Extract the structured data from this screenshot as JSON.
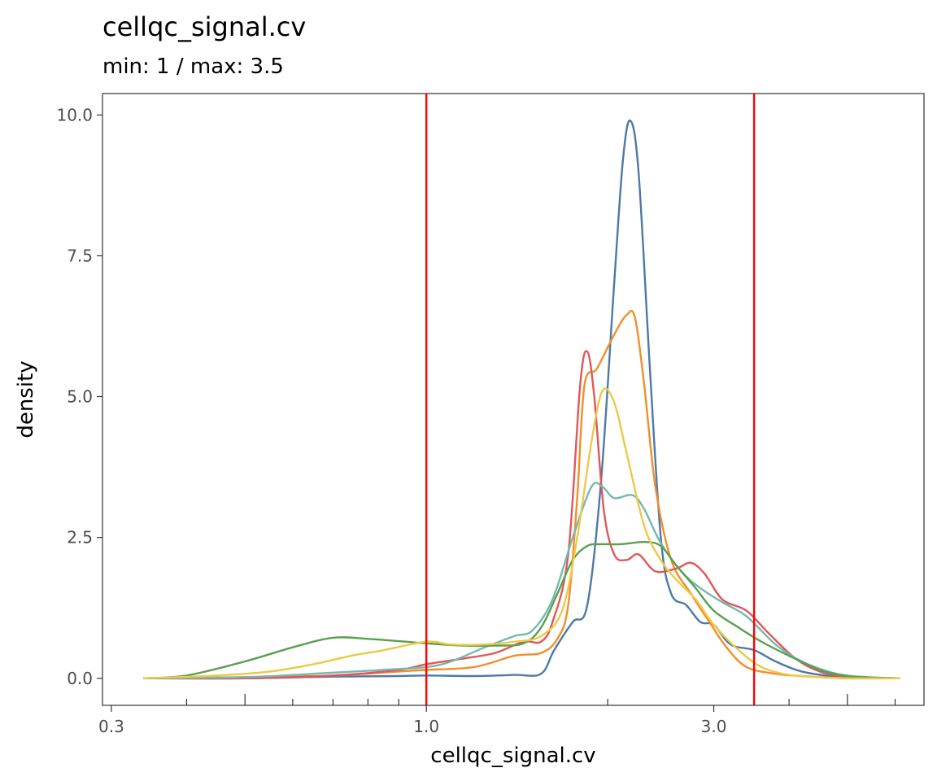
{
  "chart_data": {
    "type": "line",
    "title": "cellqc_signal.cv",
    "subtitle": "min: 1 / max: 3.5",
    "xlabel": "cellqc_signal.cv",
    "ylabel": "density",
    "x_scale": "log10",
    "xlim": [
      0.29,
      6.7
    ],
    "ylim": [
      -0.48,
      10.38
    ],
    "x_ticks": [
      0.3,
      1.0,
      3.0
    ],
    "x_tick_labels": [
      "0.3",
      "1.0",
      "3.0"
    ],
    "x_minor_ticks": [
      0.4,
      0.5,
      0.6,
      0.7,
      0.8,
      0.9,
      2.0,
      4.0,
      5.0,
      6.0
    ],
    "y_ticks": [
      0,
      2.5,
      5,
      7.5,
      10
    ],
    "y_tick_labels": [
      "0.0",
      "2.5",
      "5.0",
      "7.5",
      "10.0"
    ],
    "grid": false,
    "vlines": [
      {
        "x": 1.0,
        "color": "#ff0000"
      },
      {
        "x": 3.5,
        "color": "#ff0000"
      }
    ],
    "series": [
      {
        "color": "#4e79a7",
        "points": [
          [
            0.34,
            0.0
          ],
          [
            0.5,
            0.0
          ],
          [
            0.7,
            0.03
          ],
          [
            0.9,
            0.04
          ],
          [
            1.0,
            0.05
          ],
          [
            1.2,
            0.04
          ],
          [
            1.4,
            0.06
          ],
          [
            1.55,
            0.08
          ],
          [
            1.63,
            0.5
          ],
          [
            1.75,
            1.0
          ],
          [
            1.85,
            1.3
          ],
          [
            1.95,
            3.5
          ],
          [
            2.05,
            7.0
          ],
          [
            2.12,
            9.2
          ],
          [
            2.18,
            9.9
          ],
          [
            2.25,
            9.0
          ],
          [
            2.35,
            5.5
          ],
          [
            2.45,
            2.5
          ],
          [
            2.55,
            1.5
          ],
          [
            2.7,
            1.3
          ],
          [
            2.85,
            1.0
          ],
          [
            3.0,
            0.95
          ],
          [
            3.2,
            0.6
          ],
          [
            3.5,
            0.5
          ],
          [
            3.8,
            0.3
          ],
          [
            4.2,
            0.12
          ],
          [
            4.8,
            0.03
          ],
          [
            5.5,
            0.01
          ],
          [
            6.1,
            0.0
          ]
        ]
      },
      {
        "color": "#f28e2b",
        "points": [
          [
            0.34,
            0.0
          ],
          [
            0.5,
            0.02
          ],
          [
            0.7,
            0.05
          ],
          [
            0.9,
            0.12
          ],
          [
            1.0,
            0.15
          ],
          [
            1.2,
            0.2
          ],
          [
            1.4,
            0.4
          ],
          [
            1.55,
            0.45
          ],
          [
            1.65,
            0.7
          ],
          [
            1.72,
            1.3
          ],
          [
            1.78,
            3.2
          ],
          [
            1.83,
            5.2
          ],
          [
            1.92,
            5.5
          ],
          [
            2.05,
            6.1
          ],
          [
            2.15,
            6.45
          ],
          [
            2.22,
            6.4
          ],
          [
            2.3,
            5.2
          ],
          [
            2.4,
            3.4
          ],
          [
            2.55,
            2.1
          ],
          [
            2.75,
            1.5
          ],
          [
            2.95,
            1.0
          ],
          [
            3.15,
            0.55
          ],
          [
            3.4,
            0.2
          ],
          [
            3.8,
            0.08
          ],
          [
            4.2,
            0.04
          ],
          [
            5.0,
            0.0
          ],
          [
            6.1,
            0.0
          ]
        ]
      },
      {
        "color": "#e15759",
        "points": [
          [
            0.34,
            0.0
          ],
          [
            0.5,
            0.0
          ],
          [
            0.7,
            0.05
          ],
          [
            0.9,
            0.15
          ],
          [
            1.0,
            0.25
          ],
          [
            1.15,
            0.35
          ],
          [
            1.3,
            0.45
          ],
          [
            1.45,
            0.65
          ],
          [
            1.55,
            0.65
          ],
          [
            1.62,
            1.0
          ],
          [
            1.72,
            2.2
          ],
          [
            1.8,
            5.2
          ],
          [
            1.85,
            5.8
          ],
          [
            1.9,
            5.0
          ],
          [
            1.97,
            3.0
          ],
          [
            2.05,
            2.2
          ],
          [
            2.15,
            2.1
          ],
          [
            2.25,
            2.2
          ],
          [
            2.4,
            1.9
          ],
          [
            2.6,
            1.95
          ],
          [
            2.75,
            2.05
          ],
          [
            2.9,
            1.85
          ],
          [
            3.1,
            1.4
          ],
          [
            3.4,
            1.2
          ],
          [
            3.7,
            0.8
          ],
          [
            4.1,
            0.35
          ],
          [
            4.5,
            0.12
          ],
          [
            5.0,
            0.03
          ],
          [
            6.1,
            0.0
          ]
        ]
      },
      {
        "color": "#76b7b2",
        "points": [
          [
            0.34,
            0.0
          ],
          [
            0.5,
            0.02
          ],
          [
            0.7,
            0.1
          ],
          [
            0.85,
            0.15
          ],
          [
            1.0,
            0.2
          ],
          [
            1.1,
            0.3
          ],
          [
            1.25,
            0.55
          ],
          [
            1.4,
            0.75
          ],
          [
            1.5,
            0.85
          ],
          [
            1.62,
            1.4
          ],
          [
            1.75,
            2.5
          ],
          [
            1.88,
            3.4
          ],
          [
            1.96,
            3.4
          ],
          [
            2.05,
            3.2
          ],
          [
            2.2,
            3.25
          ],
          [
            2.3,
            3.0
          ],
          [
            2.45,
            2.4
          ],
          [
            2.65,
            1.9
          ],
          [
            2.85,
            1.6
          ],
          [
            3.1,
            1.35
          ],
          [
            3.4,
            1.1
          ],
          [
            3.8,
            0.6
          ],
          [
            4.2,
            0.3
          ],
          [
            4.8,
            0.08
          ],
          [
            5.4,
            0.02
          ],
          [
            6.1,
            0.0
          ]
        ]
      },
      {
        "color": "#59a14f",
        "points": [
          [
            0.34,
            0.0
          ],
          [
            0.4,
            0.05
          ],
          [
            0.5,
            0.3
          ],
          [
            0.6,
            0.55
          ],
          [
            0.7,
            0.72
          ],
          [
            0.8,
            0.7
          ],
          [
            0.9,
            0.66
          ],
          [
            1.0,
            0.62
          ],
          [
            1.15,
            0.58
          ],
          [
            1.3,
            0.58
          ],
          [
            1.45,
            0.62
          ],
          [
            1.55,
            0.9
          ],
          [
            1.65,
            1.5
          ],
          [
            1.75,
            2.1
          ],
          [
            1.85,
            2.35
          ],
          [
            1.95,
            2.38
          ],
          [
            2.1,
            2.38
          ],
          [
            2.3,
            2.42
          ],
          [
            2.45,
            2.35
          ],
          [
            2.6,
            2.0
          ],
          [
            2.8,
            1.6
          ],
          [
            3.0,
            1.2
          ],
          [
            3.3,
            0.9
          ],
          [
            3.6,
            0.65
          ],
          [
            4.0,
            0.4
          ],
          [
            4.5,
            0.15
          ],
          [
            5.0,
            0.04
          ],
          [
            5.6,
            0.01
          ],
          [
            6.1,
            0.0
          ]
        ]
      },
      {
        "color": "#edc948",
        "points": [
          [
            0.34,
            0.0
          ],
          [
            0.45,
            0.05
          ],
          [
            0.55,
            0.12
          ],
          [
            0.65,
            0.25
          ],
          [
            0.75,
            0.4
          ],
          [
            0.85,
            0.5
          ],
          [
            1.0,
            0.65
          ],
          [
            1.1,
            0.6
          ],
          [
            1.25,
            0.6
          ],
          [
            1.4,
            0.65
          ],
          [
            1.55,
            0.75
          ],
          [
            1.68,
            1.2
          ],
          [
            1.78,
            2.5
          ],
          [
            1.88,
            4.2
          ],
          [
            1.96,
            5.1
          ],
          [
            2.05,
            4.9
          ],
          [
            2.15,
            4.0
          ],
          [
            2.3,
            2.7
          ],
          [
            2.45,
            2.1
          ],
          [
            2.6,
            1.75
          ],
          [
            2.8,
            1.4
          ],
          [
            3.0,
            0.95
          ],
          [
            3.3,
            0.5
          ],
          [
            3.6,
            0.2
          ],
          [
            4.0,
            0.06
          ],
          [
            4.5,
            0.02
          ],
          [
            5.0,
            0.0
          ],
          [
            6.1,
            0.0
          ]
        ]
      }
    ]
  }
}
